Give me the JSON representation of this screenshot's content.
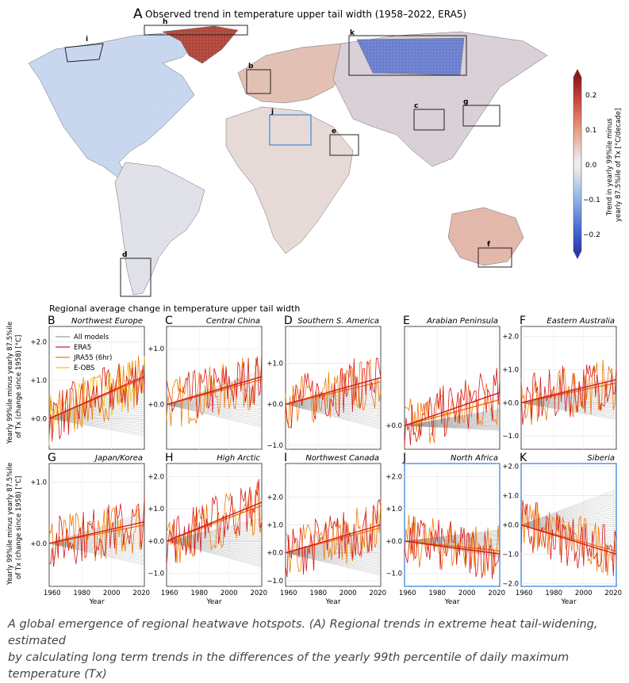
{
  "figure": {
    "panel_a_letter": "A",
    "panel_a_title": "Observed trend in temperature upper tail width (1958–2022, ERA5)",
    "colorbar_label_line1": "Trend in yearly 99%ile minus",
    "colorbar_label_line2": "yearly 87.5%ile of Tx [°C/decade]",
    "colorbar_ticks": [
      "0.2",
      "0.1",
      "0.0",
      "−0.1",
      "−0.2"
    ],
    "region_labels": [
      "i",
      "h",
      "b",
      "k",
      "c",
      "g",
      "j",
      "e",
      "d",
      "f"
    ],
    "regional_title": "Regional average change in temperature upper tail width",
    "ylabel_line1": "Yearly 99%ile minus yearly 87.5%ile",
    "ylabel_line2": "of Tx (change since 1958) [°C]",
    "xlabel": "Year",
    "legend": [
      "All models",
      "ERA5",
      "JRA55 (6hr)",
      "E-OBS"
    ],
    "caption_line1": "A global emergence of regional heatwave hotspots. (A) Regional trends in extreme heat tail-widening, estimated",
    "caption_line2": "by calculating long term trends in the differences of the yearly 99th percentile of daily maximum temperature (Tx)"
  },
  "colors": {
    "era5": "#d7191c",
    "jra55": "#f07a00",
    "eobs": "#f2c81a",
    "models": "#9a9a9a",
    "highlight_box": "#4a8fd8",
    "cbar_top": "#8b1a1a",
    "cbar_bottom": "#2b3aa8"
  },
  "chart_data": [
    {
      "type": "line",
      "panel": "B",
      "title": "Northwest Europe",
      "x_range": [
        1958,
        2022
      ],
      "ylim": [
        -0.8,
        2.4
      ],
      "yticks": [
        "+0.0",
        "+1.0",
        "+2.0"
      ],
      "trend": {
        "era5": [
          0,
          1.1
        ],
        "jra55": [
          0,
          1.05
        ],
        "eobs": [
          0,
          1.05
        ],
        "models_end_range": [
          -0.45,
          1.0
        ]
      },
      "series": [
        {
          "name": "ERA5"
        },
        {
          "name": "JRA55 (6hr)"
        },
        {
          "name": "E-OBS"
        }
      ]
    },
    {
      "type": "line",
      "panel": "C",
      "title": "Central China",
      "x_range": [
        1958,
        2022
      ],
      "ylim": [
        -0.8,
        1.4
      ],
      "yticks": [
        "+0.0",
        "+1.0"
      ],
      "trend": {
        "era5": [
          0,
          0.5
        ],
        "jra55": [
          0,
          0.45
        ],
        "models_end_range": [
          -0.4,
          0.6
        ]
      },
      "series": [
        {
          "name": "ERA5"
        },
        {
          "name": "JRA55 (6hr)"
        }
      ]
    },
    {
      "type": "line",
      "panel": "D",
      "title": "Southern S. America",
      "x_range": [
        1958,
        2022
      ],
      "ylim": [
        -1.1,
        1.9
      ],
      "yticks": [
        "−1.0",
        "+0.0",
        "+1.0"
      ],
      "trend": {
        "era5": [
          0,
          0.65
        ],
        "jra55": [
          0,
          0.55
        ],
        "models_end_range": [
          -0.6,
          0.6
        ]
      },
      "series": [
        {
          "name": "ERA5"
        },
        {
          "name": "JRA55 (6hr)"
        }
      ]
    },
    {
      "type": "line",
      "panel": "E",
      "title": "Arabian Peninsula",
      "x_range": [
        1958,
        2022
      ],
      "ylim": [
        -0.5,
        2.1
      ],
      "yticks": [
        "+0.0"
      ],
      "trend": {
        "era5": [
          0,
          0.7
        ],
        "jra55": [
          0,
          0.55
        ],
        "models_end_range": [
          -0.1,
          0.35
        ]
      },
      "series": [
        {
          "name": "ERA5"
        },
        {
          "name": "JRA55 (6hr)"
        }
      ]
    },
    {
      "type": "line",
      "panel": "F",
      "title": "Eastern Australia",
      "x_range": [
        1958,
        2022
      ],
      "ylim": [
        -1.4,
        2.3
      ],
      "yticks": [
        "−1.0",
        "+0.0",
        "+1.0",
        "+2.0"
      ],
      "trend": {
        "era5": [
          0,
          0.7
        ],
        "jra55": [
          0,
          0.6
        ],
        "models_end_range": [
          -0.5,
          0.8
        ]
      },
      "series": [
        {
          "name": "ERA5"
        },
        {
          "name": "JRA55 (6hr)"
        }
      ]
    },
    {
      "type": "line",
      "panel": "G",
      "title": "Japan/Korea",
      "x_range": [
        1958,
        2022
      ],
      "ylim": [
        -0.7,
        1.3
      ],
      "yticks": [
        "+0.0",
        "+1.0"
      ],
      "trend": {
        "era5": [
          0,
          0.35
        ],
        "jra55": [
          0,
          0.3
        ],
        "models_end_range": [
          -0.35,
          0.5
        ]
      },
      "series": [
        {
          "name": "ERA5"
        },
        {
          "name": "JRA55 (6hr)"
        }
      ]
    },
    {
      "type": "line",
      "panel": "H",
      "title": "High Arctic",
      "x_range": [
        1958,
        2022
      ],
      "ylim": [
        -1.4,
        2.4
      ],
      "yticks": [
        "−1.0",
        "+0.0",
        "+1.0",
        "+2.0"
      ],
      "trend": {
        "era5": [
          0,
          1.2
        ],
        "jra55": [
          0,
          1.1
        ],
        "models_end_range": [
          -0.8,
          0.7
        ]
      },
      "series": [
        {
          "name": "ERA5"
        },
        {
          "name": "JRA55 (6hr)"
        }
      ]
    },
    {
      "type": "line",
      "panel": "I",
      "title": "Northwest Canada",
      "x_range": [
        1958,
        2022
      ],
      "ylim": [
        -1.2,
        3.2
      ],
      "yticks": [
        "−1.0",
        "+0.0",
        "+1.0",
        "+2.0"
      ],
      "trend": {
        "era5": [
          0,
          1.0
        ],
        "jra55": [
          0,
          0.9
        ],
        "models_end_range": [
          -0.8,
          0.9
        ]
      },
      "series": [
        {
          "name": "ERA5"
        },
        {
          "name": "JRA55 (6hr)"
        }
      ]
    },
    {
      "type": "line",
      "panel": "J",
      "title": "North Africa",
      "x_range": [
        1958,
        2022
      ],
      "ylim": [
        -1.4,
        2.4
      ],
      "yticks": [
        "−1.0",
        "+0.0",
        "+1.0",
        "+2.0"
      ],
      "trend": {
        "era5": [
          0,
          -0.4
        ],
        "jra55": [
          0,
          -0.3
        ],
        "models_end_range": [
          -0.5,
          0.35
        ]
      },
      "series": [
        {
          "name": "ERA5"
        },
        {
          "name": "JRA55 (6hr)"
        }
      ]
    },
    {
      "type": "line",
      "panel": "K",
      "title": "Siberia",
      "x_range": [
        1958,
        2022
      ],
      "ylim": [
        -2.1,
        2.1
      ],
      "yticks": [
        "−2.0",
        "−1.0",
        "+0.0",
        "+1.0",
        "+2.0"
      ],
      "trend": {
        "era5": [
          0,
          -1.0
        ],
        "jra55": [
          0,
          -0.9
        ],
        "models_end_range": [
          -0.8,
          1.2
        ]
      },
      "series": [
        {
          "name": "ERA5"
        },
        {
          "name": "JRA55 (6hr)"
        }
      ]
    }
  ],
  "xticks": [
    "1960",
    "1980",
    "2000",
    "2020"
  ]
}
